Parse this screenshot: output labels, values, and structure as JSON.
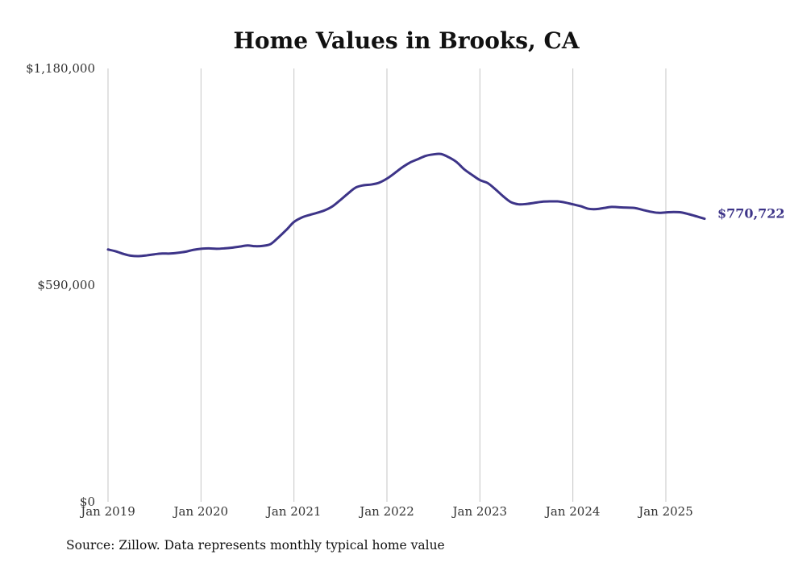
{
  "chart_data": {
    "type": "line",
    "title": "Home Values in Brooks, CA",
    "xlabel": "",
    "ylabel": "",
    "ylim": [
      0,
      1180000
    ],
    "yticks": [
      {
        "value": 0,
        "label": "$0"
      },
      {
        "value": 590000,
        "label": "$590,000"
      },
      {
        "value": 1180000,
        "label": "$1,180,000"
      }
    ],
    "xticks": [
      {
        "value": "2019-01",
        "label": "Jan 2019"
      },
      {
        "value": "2020-01",
        "label": "Jan 2020"
      },
      {
        "value": "2021-01",
        "label": "Jan 2021"
      },
      {
        "value": "2022-01",
        "label": "Jan 2022"
      },
      {
        "value": "2023-01",
        "label": "Jan 2023"
      },
      {
        "value": "2024-01",
        "label": "Jan 2024"
      },
      {
        "value": "2025-01",
        "label": "Jan 2025"
      }
    ],
    "xlim": [
      "2019-01",
      "2025-06"
    ],
    "grid": "vertical",
    "line_color": "#3d3488",
    "series": [
      {
        "x": [
          "2019-01",
          "2019-02",
          "2019-03",
          "2019-04",
          "2019-05",
          "2019-06",
          "2019-07",
          "2019-08",
          "2019-09",
          "2019-10",
          "2019-11",
          "2019-12",
          "2020-01",
          "2020-02",
          "2020-03",
          "2020-04",
          "2020-05",
          "2020-06",
          "2020-07",
          "2020-08",
          "2020-09",
          "2020-10",
          "2020-11",
          "2020-12",
          "2021-01",
          "2021-02",
          "2021-03",
          "2021-04",
          "2021-05",
          "2021-06",
          "2021-07",
          "2021-08",
          "2021-09",
          "2021-10",
          "2021-11",
          "2021-12",
          "2022-01",
          "2022-02",
          "2022-03",
          "2022-04",
          "2022-05",
          "2022-06",
          "2022-07",
          "2022-08",
          "2022-09",
          "2022-10",
          "2022-11",
          "2022-12",
          "2023-01",
          "2023-02",
          "2023-03",
          "2023-04",
          "2023-05",
          "2023-06",
          "2023-07",
          "2023-08",
          "2023-09",
          "2023-10",
          "2023-11",
          "2023-12",
          "2024-01",
          "2024-02",
          "2024-03",
          "2024-04",
          "2024-05",
          "2024-06",
          "2024-07",
          "2024-08",
          "2024-09",
          "2024-10",
          "2024-11",
          "2024-12",
          "2025-01",
          "2025-02",
          "2025-03",
          "2025-04",
          "2025-05",
          "2025-06"
        ],
        "values": [
          687000,
          682000,
          675000,
          670000,
          669000,
          671000,
          674000,
          676000,
          676000,
          678000,
          681000,
          686000,
          689000,
          690000,
          689000,
          690000,
          692000,
          695000,
          698000,
          696000,
          697000,
          702000,
          720000,
          740000,
          762000,
          774000,
          781000,
          787000,
          794000,
          805000,
          822000,
          840000,
          856000,
          862000,
          864000,
          869000,
          880000,
          895000,
          911000,
          924000,
          933000,
          942000,
          946000,
          947000,
          938000,
          925000,
          905000,
          890000,
          876000,
          868000,
          851000,
          832000,
          816000,
          810000,
          811000,
          814000,
          817000,
          818000,
          818000,
          815000,
          810000,
          805000,
          798000,
          797000,
          800000,
          803000,
          802000,
          801000,
          800000,
          795000,
          790000,
          787000,
          788000,
          789000,
          788000,
          783000,
          777000,
          770722
        ]
      }
    ],
    "end_label": "$770,722"
  },
  "source": "Source: Zillow. Data represents monthly typical home value"
}
